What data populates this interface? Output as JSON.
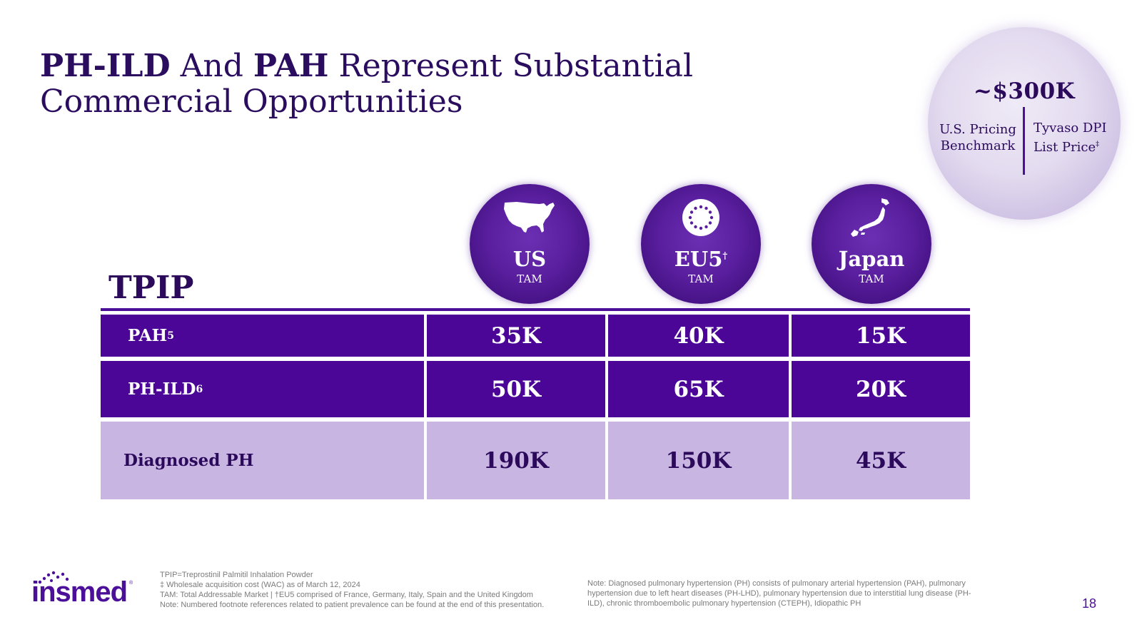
{
  "title": {
    "bold1": "PH-ILD",
    "mid1": " And ",
    "bold2": "PAH",
    "rest": " Represent Substantial Commercial Opportunities"
  },
  "pricing": {
    "value": "~$300K",
    "left_label": "U.S. Pricing Benchmark",
    "right_label": "Tyvaso DPI List Price",
    "right_marker": "‡"
  },
  "regions": [
    {
      "name": "US",
      "marker": "",
      "sub": "TAM",
      "icon": "us-map-icon"
    },
    {
      "name": "EU5",
      "marker": "†",
      "sub": "TAM",
      "icon": "eu-stars-icon"
    },
    {
      "name": "Japan",
      "marker": "",
      "sub": "TAM",
      "icon": "japan-map-icon"
    }
  ],
  "table": {
    "label": "TPIP",
    "rows": [
      {
        "label": "PAH",
        "ref": "5",
        "values": [
          "35K",
          "40K",
          "15K"
        ]
      },
      {
        "label": "PH-ILD",
        "ref": "6",
        "values": [
          "50K",
          "65K",
          "20K"
        ]
      },
      {
        "label": "Diagnosed PH",
        "ref": "",
        "values": [
          "190K",
          "150K",
          "45K"
        ]
      }
    ]
  },
  "footer": {
    "logo": "insmed",
    "footnotes": [
      "TPIP=Treprostinil Palmitil Inhalation Powder",
      "‡ Wholesale acquisition cost (WAC) as of March 12, 2024",
      "TAM: Total Addressable Market | †EU5 comprised of France, Germany, Italy, Spain and the United Kingdom",
      "Note: Numbered footnote references related to patient prevalence can be found at the end of this presentation."
    ],
    "note": "Note: Diagnosed pulmonary hypertension (PH) consists of pulmonary arterial hypertension (PAH), pulmonary hypertension due to left heart diseases (PH-LHD), pulmonary hypertension due to interstitial lung disease (PH-ILD), chronic thromboembolic pulmonary hypertension (CTEPH), Idiopathic PH",
    "page_number": "18"
  },
  "colors": {
    "brand_purple": "#4b0597",
    "light_purple": "#c8b5e2",
    "title_text": "#2a0d5e"
  }
}
